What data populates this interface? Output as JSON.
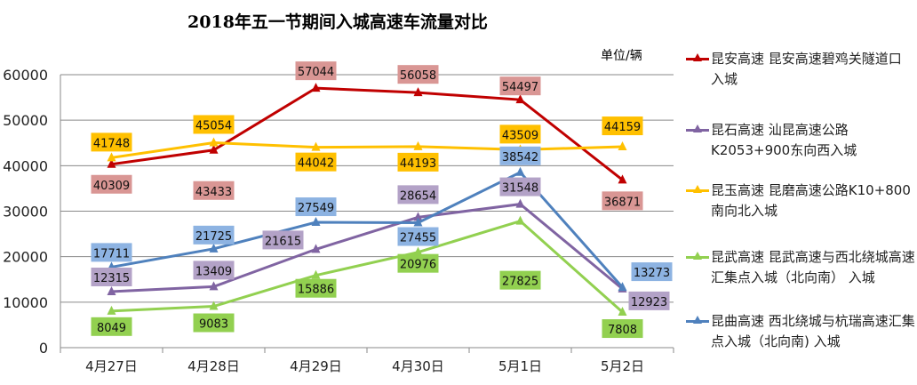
{
  "chart_data": {
    "type": "line",
    "title": "2018年五一节期间入城高速车流量对比",
    "unit_label": "单位/辆",
    "xlabel": "",
    "ylabel": "",
    "ylim": [
      0,
      60000
    ],
    "yticks": [
      "0",
      "10000",
      "20000",
      "30000",
      "40000",
      "50000",
      "60000"
    ],
    "grid": true,
    "legend_position": "right",
    "categories": [
      "4月27日",
      "4月28日",
      "4月29日",
      "4月30日",
      "5月1日",
      "5月2日"
    ],
    "series": [
      {
        "name": "昆安高速 昆安高速碧鸡关隧道口 入城",
        "color": "#c00000",
        "label_bg": "#d99694",
        "values": [
          40309,
          43433,
          57044,
          56058,
          54497,
          36871
        ]
      },
      {
        "name": "昆石高速 汕昆高速公路K2053+900东向西入城",
        "color": "#8064a2",
        "label_bg": "#b3a2c7",
        "values": [
          12315,
          13409,
          21615,
          28654,
          31548,
          12923
        ]
      },
      {
        "name": "昆玉高速 昆磨高速公路K10+800南向北入城",
        "color": "#ffc000",
        "label_bg": "#ffc000",
        "values": [
          41748,
          45054,
          44042,
          44193,
          43509,
          44159
        ]
      },
      {
        "name": "昆武高速 昆武高速与西北绕城高速汇集点入城（北向南） 入城",
        "color": "#92d050",
        "label_bg": "#92d050",
        "values": [
          8049,
          9083,
          15886,
          20976,
          27825,
          7808
        ]
      },
      {
        "name": "昆曲高速 西北绕城与杭瑞高速汇集点入城（北向南) 入城",
        "color": "#4f81bd",
        "label_bg": "#8db3e2",
        "values": [
          17711,
          21725,
          27549,
          27455,
          38542,
          13273
        ]
      }
    ]
  }
}
